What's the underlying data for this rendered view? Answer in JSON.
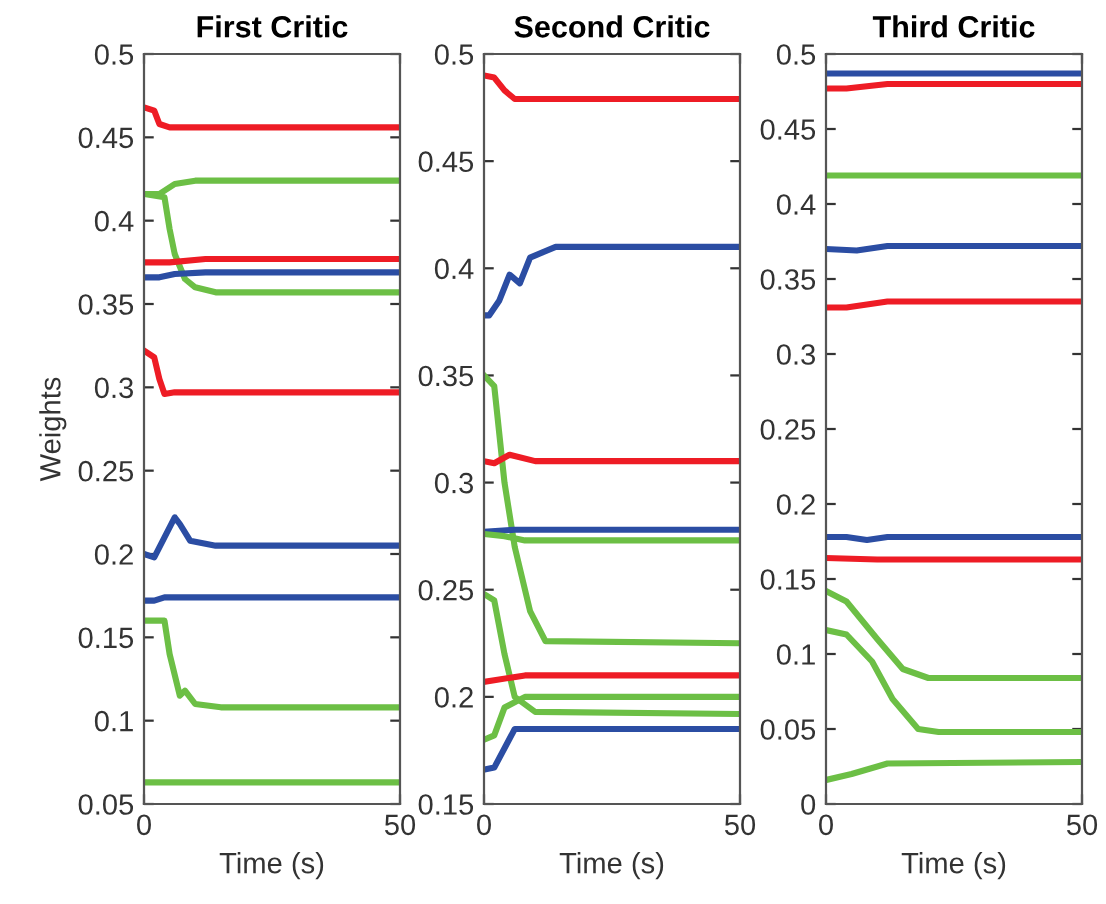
{
  "chart_data": [
    {
      "type": "line",
      "title": "First Critic",
      "xlabel": "Time (s)",
      "ylabel": "Weights",
      "xlim": [
        0,
        50
      ],
      "xticks": [
        0,
        50
      ],
      "ylim": [
        0.05,
        0.5
      ],
      "yticks": [
        0.05,
        0.1,
        0.15,
        0.2,
        0.25,
        0.3,
        0.35,
        0.4,
        0.45,
        0.5
      ],
      "grid": false,
      "legend": false,
      "line_style": "solid",
      "marker": "none",
      "series": [
        {
          "color": "#ee1c25",
          "x": [
            0,
            2,
            3,
            5,
            50
          ],
          "values": [
            0.468,
            0.466,
            0.458,
            0.456,
            0.456
          ]
        },
        {
          "color": "#6cbf45",
          "x": [
            0,
            3,
            6,
            10,
            50
          ],
          "values": [
            0.416,
            0.416,
            0.422,
            0.424,
            0.424
          ]
        },
        {
          "color": "#6cbf45",
          "x": [
            0,
            4,
            5,
            6,
            8,
            10,
            14,
            20,
            50
          ],
          "values": [
            0.416,
            0.414,
            0.395,
            0.38,
            0.365,
            0.36,
            0.357,
            0.357,
            0.357
          ]
        },
        {
          "color": "#ee1c25",
          "x": [
            0,
            5,
            12,
            50
          ],
          "values": [
            0.375,
            0.375,
            0.377,
            0.377
          ]
        },
        {
          "color": "#2b4da3",
          "x": [
            0,
            3,
            6,
            12,
            50
          ],
          "values": [
            0.366,
            0.366,
            0.368,
            0.369,
            0.369
          ]
        },
        {
          "color": "#ee1c25",
          "x": [
            0,
            2,
            3,
            4,
            6,
            50
          ],
          "values": [
            0.322,
            0.318,
            0.305,
            0.296,
            0.297,
            0.297
          ]
        },
        {
          "color": "#2b4da3",
          "x": [
            0,
            2,
            4,
            6,
            7,
            9,
            14,
            50
          ],
          "values": [
            0.2,
            0.198,
            0.21,
            0.222,
            0.218,
            0.208,
            0.205,
            0.205
          ]
        },
        {
          "color": "#2b4da3",
          "x": [
            0,
            2,
            4,
            50
          ],
          "values": [
            0.172,
            0.172,
            0.174,
            0.174
          ]
        },
        {
          "color": "#6cbf45",
          "x": [
            0,
            4,
            5,
            7,
            8,
            10,
            15,
            50
          ],
          "values": [
            0.16,
            0.16,
            0.14,
            0.115,
            0.118,
            0.11,
            0.108,
            0.108
          ]
        },
        {
          "color": "#6cbf45",
          "x": [
            0,
            50
          ],
          "values": [
            0.063,
            0.063
          ]
        }
      ]
    },
    {
      "type": "line",
      "title": "Second Critic",
      "xlabel": "Time (s)",
      "xlim": [
        0,
        50
      ],
      "xticks": [
        0,
        50
      ],
      "ylim": [
        0.15,
        0.5
      ],
      "yticks": [
        0.15,
        0.2,
        0.25,
        0.3,
        0.35,
        0.4,
        0.45,
        0.5
      ],
      "grid": false,
      "legend": false,
      "line_style": "solid",
      "marker": "none",
      "series": [
        {
          "color": "#ee1c25",
          "x": [
            0,
            2,
            4,
            6,
            50
          ],
          "values": [
            0.49,
            0.489,
            0.483,
            0.479,
            0.479
          ]
        },
        {
          "color": "#2b4da3",
          "x": [
            0,
            1,
            3,
            5,
            7,
            9,
            14,
            50
          ],
          "values": [
            0.378,
            0.378,
            0.385,
            0.397,
            0.393,
            0.405,
            0.41,
            0.41
          ]
        },
        {
          "color": "#6cbf45",
          "x": [
            0,
            2,
            4,
            6,
            9,
            12,
            50
          ],
          "values": [
            0.35,
            0.345,
            0.3,
            0.27,
            0.24,
            0.226,
            0.225
          ]
        },
        {
          "color": "#ee1c25",
          "x": [
            0,
            2,
            5,
            10,
            50
          ],
          "values": [
            0.31,
            0.309,
            0.313,
            0.31,
            0.31
          ]
        },
        {
          "color": "#2b4da3",
          "x": [
            0,
            6,
            50
          ],
          "values": [
            0.277,
            0.278,
            0.278
          ]
        },
        {
          "color": "#6cbf45",
          "x": [
            0,
            4,
            8,
            50
          ],
          "values": [
            0.276,
            0.275,
            0.273,
            0.273
          ]
        },
        {
          "color": "#6cbf45",
          "x": [
            0,
            2,
            4,
            6,
            10,
            50
          ],
          "values": [
            0.248,
            0.245,
            0.22,
            0.2,
            0.193,
            0.192
          ]
        },
        {
          "color": "#ee1c25",
          "x": [
            0,
            8,
            50
          ],
          "values": [
            0.207,
            0.21,
            0.21
          ]
        },
        {
          "color": "#6cbf45",
          "x": [
            0,
            2,
            4,
            8,
            50
          ],
          "values": [
            0.18,
            0.182,
            0.195,
            0.2,
            0.2
          ]
        },
        {
          "color": "#2b4da3",
          "x": [
            0,
            2,
            6,
            50
          ],
          "values": [
            0.166,
            0.167,
            0.185,
            0.185
          ]
        }
      ]
    },
    {
      "type": "line",
      "title": "Third Critic",
      "xlabel": "Time (s)",
      "xlim": [
        0,
        50
      ],
      "xticks": [
        0,
        50
      ],
      "ylim": [
        0,
        0.5
      ],
      "yticks": [
        0,
        0.05,
        0.1,
        0.15,
        0.2,
        0.25,
        0.3,
        0.35,
        0.4,
        0.45,
        0.5
      ],
      "grid": false,
      "legend": false,
      "line_style": "solid",
      "marker": "none",
      "series": [
        {
          "color": "#2b4da3",
          "x": [
            0,
            50
          ],
          "values": [
            0.487,
            0.487
          ]
        },
        {
          "color": "#ee1c25",
          "x": [
            0,
            4,
            12,
            50
          ],
          "values": [
            0.477,
            0.477,
            0.48,
            0.48
          ]
        },
        {
          "color": "#6cbf45",
          "x": [
            0,
            50
          ],
          "values": [
            0.419,
            0.419
          ]
        },
        {
          "color": "#2b4da3",
          "x": [
            0,
            6,
            12,
            50
          ],
          "values": [
            0.37,
            0.369,
            0.372,
            0.372
          ]
        },
        {
          "color": "#ee1c25",
          "x": [
            0,
            4,
            12,
            50
          ],
          "values": [
            0.331,
            0.331,
            0.335,
            0.335
          ]
        },
        {
          "color": "#2b4da3",
          "x": [
            0,
            4,
            8,
            12,
            50
          ],
          "values": [
            0.178,
            0.178,
            0.176,
            0.178,
            0.178
          ]
        },
        {
          "color": "#ee1c25",
          "x": [
            0,
            10,
            50
          ],
          "values": [
            0.164,
            0.163,
            0.163
          ]
        },
        {
          "color": "#6cbf45",
          "x": [
            0,
            4,
            10,
            15,
            20,
            50
          ],
          "values": [
            0.142,
            0.135,
            0.11,
            0.09,
            0.084,
            0.084
          ]
        },
        {
          "color": "#6cbf45",
          "x": [
            0,
            4,
            9,
            13,
            18,
            22,
            50
          ],
          "values": [
            0.116,
            0.113,
            0.095,
            0.07,
            0.05,
            0.048,
            0.048
          ]
        },
        {
          "color": "#6cbf45",
          "x": [
            0,
            5,
            12,
            50
          ],
          "values": [
            0.016,
            0.02,
            0.027,
            0.028
          ]
        }
      ]
    }
  ]
}
